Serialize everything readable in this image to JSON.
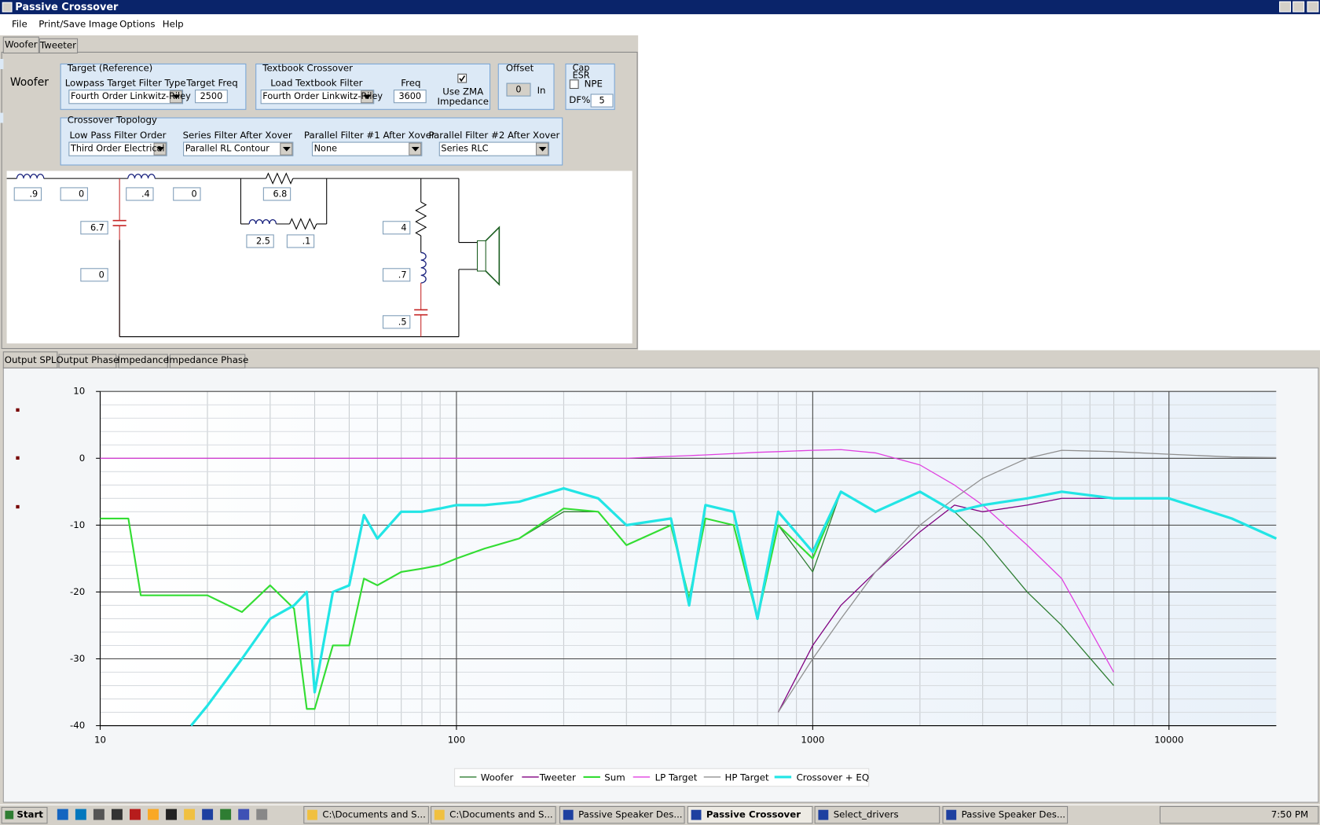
{
  "window": {
    "title": "Passive Crossover"
  },
  "menu": [
    "File",
    "Print/Save Image",
    "Options",
    "Help"
  ],
  "driver_tabs": [
    "Woofer",
    "Tweeter"
  ],
  "section_label": "Woofer",
  "target": {
    "legend": "Target (Reference)",
    "type_label": "Lowpass Target Filter Type",
    "type_value": "Fourth Order Linkwitz-Riley",
    "freq_label": "Target Freq",
    "freq_value": 2500
  },
  "textbook": {
    "legend": "Textbook Crossover",
    "load_label": "Load Textbook Filter",
    "load_value": "Fourth Order Linkwitz-Riley",
    "freq_label": "Freq",
    "freq_value": 3600,
    "zma_label": [
      "Use ZMA",
      "Impedance"
    ]
  },
  "offset": {
    "legend": "Offset",
    "value": 0,
    "unit": "In"
  },
  "cap": {
    "legend": [
      "Cap",
      "ESR"
    ],
    "npe_label": "NPE",
    "df_label": "DF%",
    "df_value": 5
  },
  "topology": {
    "legend": "Crossover Topology",
    "fields": [
      {
        "label": "Low Pass Filter Order",
        "value": "Third Order Electrical"
      },
      {
        "label": "Series Filter After Xover",
        "value": "Parallel RL Contour"
      },
      {
        "label": "Parallel Filter #1 After Xover",
        "value": "None"
      },
      {
        "label": "Parallel Filter #2 After Xover",
        "value": "Series RLC"
      }
    ]
  },
  "schematic": {
    "values": [
      ".9",
      "0",
      ".4",
      "0",
      "6.8",
      "6.7",
      "0",
      "2.5",
      ".1",
      "4",
      ".7",
      ".5"
    ]
  },
  "graph_tabs": [
    "Output SPL",
    "Output Phase",
    "Impedance",
    "Impedance Phase"
  ],
  "chart_data": {
    "type": "line",
    "x": [
      10,
      12,
      13,
      15,
      18,
      20,
      25,
      30,
      35,
      38,
      40,
      45,
      50,
      55,
      60,
      70,
      80,
      90,
      100,
      120,
      150,
      200,
      250,
      300,
      400,
      450,
      500,
      600,
      700,
      800,
      1000,
      1200,
      1500,
      2000,
      2500,
      3000,
      4000,
      5000,
      7000,
      10000,
      15000,
      20000
    ],
    "xscale": "log",
    "xlim": [
      10,
      20000
    ],
    "xticks": [
      10,
      100,
      1000,
      10000
    ],
    "ylim": [
      -40,
      10
    ],
    "yticks": [
      -40,
      -30,
      -20,
      -10,
      0,
      10
    ],
    "grid": true,
    "legend": "bottom",
    "series": [
      {
        "name": "Woofer",
        "color": "#2e7d32",
        "values": [
          -9,
          -9,
          -20.5,
          -20.5,
          -20.5,
          -20.5,
          -23,
          -19,
          -22.5,
          -37.5,
          -37.5,
          -28,
          -28,
          -18,
          -19,
          -17,
          -16.5,
          -16,
          -15,
          -13.5,
          -12,
          -8,
          -8,
          -13,
          -10,
          -21,
          -9,
          -10,
          -24,
          -10,
          -17,
          -5,
          -8,
          -5,
          -8,
          -12,
          -20,
          -25,
          -34,
          null,
          null,
          null
        ]
      },
      {
        "name": "Tweeter",
        "color": "#800080",
        "values": [
          null,
          null,
          null,
          null,
          null,
          null,
          null,
          null,
          null,
          null,
          null,
          null,
          null,
          null,
          null,
          null,
          null,
          null,
          null,
          null,
          null,
          null,
          null,
          null,
          null,
          null,
          null,
          null,
          null,
          -38,
          -28,
          -22,
          -17,
          -11,
          -7,
          -8,
          -7,
          -6,
          -6,
          -6,
          -9,
          -12
        ]
      },
      {
        "name": "Sum",
        "color": "#33dd33",
        "values": [
          -9,
          -9,
          -20.5,
          -20.5,
          -20.5,
          -20.5,
          -23,
          -19,
          -22.5,
          -37.5,
          -37.5,
          -28,
          -28,
          -18,
          -19,
          -17,
          -16.5,
          -16,
          -15,
          -13.5,
          -12,
          -7.5,
          -8,
          -13,
          -10,
          -21,
          -9,
          -10,
          -24,
          -10,
          -15,
          -5,
          -8,
          -5,
          -8,
          -7,
          -6,
          -5,
          -6,
          -6,
          -9,
          -12
        ]
      },
      {
        "name": "LP Target",
        "color": "#e040e0",
        "values": [
          0,
          0,
          0,
          0,
          0,
          0,
          0,
          0,
          0,
          0,
          0,
          0,
          0,
          0,
          0,
          0,
          0,
          0,
          0,
          0,
          0,
          0,
          0,
          0,
          0.3,
          0.4,
          0.5,
          0.7,
          0.9,
          1,
          1.2,
          1.3,
          0.8,
          -1,
          -4,
          -7,
          -13,
          -18,
          -32,
          null,
          null,
          null
        ]
      },
      {
        "name": "HP Target",
        "color": "#909090",
        "values": [
          null,
          null,
          null,
          null,
          null,
          null,
          null,
          null,
          null,
          null,
          null,
          null,
          null,
          null,
          null,
          null,
          null,
          null,
          null,
          null,
          null,
          null,
          null,
          null,
          null,
          null,
          null,
          null,
          null,
          -38,
          -30,
          -24,
          -17,
          -10,
          -6,
          -3,
          0,
          1.2,
          1,
          0.6,
          0.2,
          0.1
        ]
      },
      {
        "name": "Crossover + EQ",
        "color": "#22e5e5",
        "values": [
          null,
          null,
          null,
          null,
          -40,
          -37,
          -30,
          -24,
          -22,
          -20,
          -35,
          -20,
          -19,
          -8.5,
          -12,
          -8,
          -8,
          -7.5,
          -7,
          -7,
          -6.5,
          -4.5,
          -6,
          -10,
          -9,
          -22,
          -7,
          -8,
          -24,
          -8,
          -14,
          -5,
          -8,
          -5,
          -8,
          -7,
          -6,
          -5,
          -6,
          -6,
          -9,
          -12
        ]
      }
    ]
  },
  "taskbar": {
    "start": "Start",
    "tasks": [
      "C:\\Documents and S...",
      "C:\\Documents and S...",
      "Passive Speaker Des...",
      "Passive Crossover",
      "Select_drivers",
      "Passive Speaker Des..."
    ],
    "clock": "7:50 PM"
  }
}
